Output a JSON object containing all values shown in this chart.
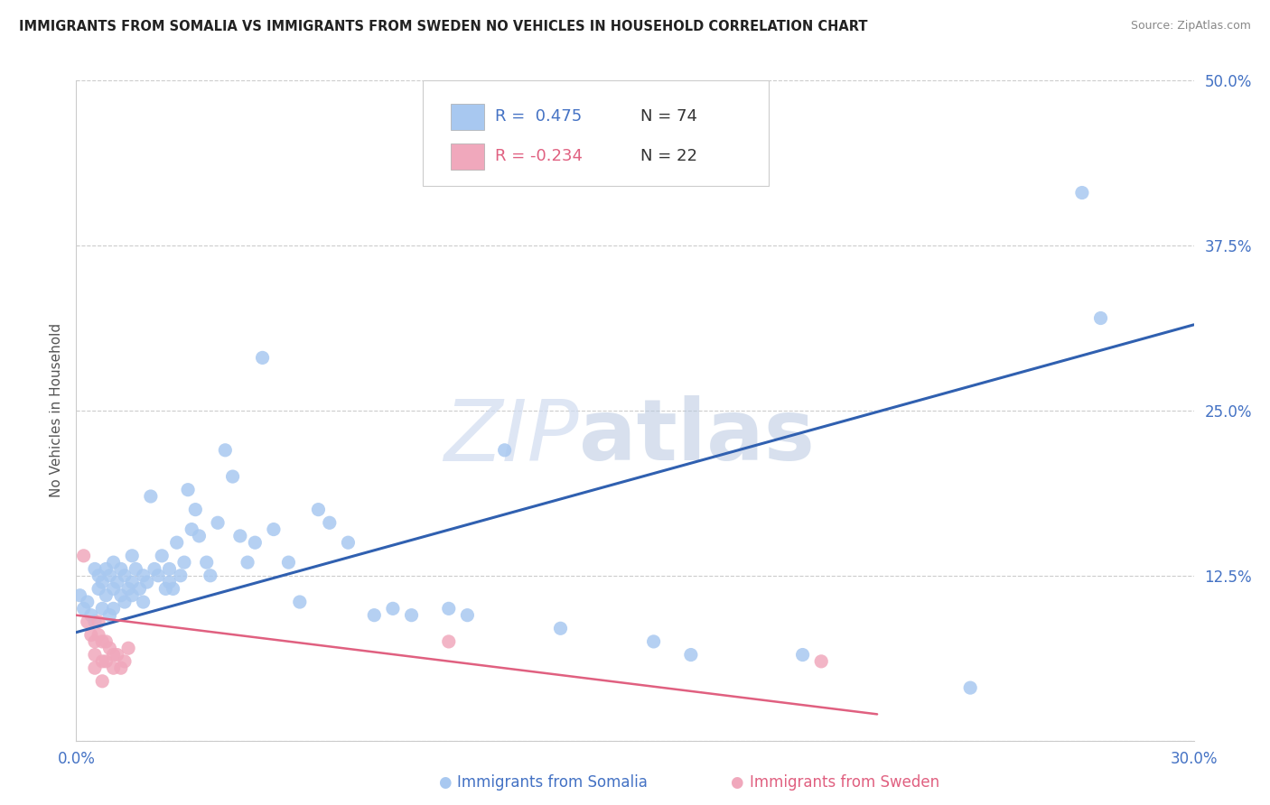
{
  "title": "IMMIGRANTS FROM SOMALIA VS IMMIGRANTS FROM SWEDEN NO VEHICLES IN HOUSEHOLD CORRELATION CHART",
  "source": "Source: ZipAtlas.com",
  "ylabel": "No Vehicles in Household",
  "xlabel_somalia": "Immigrants from Somalia",
  "xlabel_sweden": "Immigrants from Sweden",
  "legend_r_somalia": "R =  0.475",
  "legend_n_somalia": "N = 74",
  "legend_r_sweden": "R = -0.234",
  "legend_n_sweden": "N = 22",
  "xmin": 0.0,
  "xmax": 0.3,
  "ymin": 0.0,
  "ymax": 0.5,
  "yticks": [
    0.0,
    0.125,
    0.25,
    0.375,
    0.5
  ],
  "ytick_labels": [
    "",
    "12.5%",
    "25.0%",
    "37.5%",
    "50.0%"
  ],
  "xticks": [
    0.0,
    0.3
  ],
  "xtick_labels": [
    "0.0%",
    "30.0%"
  ],
  "color_somalia": "#A8C8F0",
  "color_sweden": "#F0A8BC",
  "line_color_somalia": "#3060B0",
  "line_color_sweden": "#E06080",
  "watermark_zip": "ZIP",
  "watermark_atlas": "atlas",
  "somalia_points": [
    [
      0.001,
      0.11
    ],
    [
      0.002,
      0.1
    ],
    [
      0.003,
      0.105
    ],
    [
      0.004,
      0.095
    ],
    [
      0.005,
      0.13
    ],
    [
      0.005,
      0.09
    ],
    [
      0.006,
      0.125
    ],
    [
      0.006,
      0.115
    ],
    [
      0.007,
      0.12
    ],
    [
      0.007,
      0.1
    ],
    [
      0.008,
      0.13
    ],
    [
      0.008,
      0.11
    ],
    [
      0.009,
      0.125
    ],
    [
      0.009,
      0.095
    ],
    [
      0.01,
      0.135
    ],
    [
      0.01,
      0.115
    ],
    [
      0.01,
      0.1
    ],
    [
      0.011,
      0.12
    ],
    [
      0.012,
      0.13
    ],
    [
      0.012,
      0.11
    ],
    [
      0.013,
      0.125
    ],
    [
      0.013,
      0.105
    ],
    [
      0.014,
      0.115
    ],
    [
      0.015,
      0.14
    ],
    [
      0.015,
      0.12
    ],
    [
      0.015,
      0.11
    ],
    [
      0.016,
      0.13
    ],
    [
      0.017,
      0.115
    ],
    [
      0.018,
      0.125
    ],
    [
      0.018,
      0.105
    ],
    [
      0.019,
      0.12
    ],
    [
      0.02,
      0.185
    ],
    [
      0.021,
      0.13
    ],
    [
      0.022,
      0.125
    ],
    [
      0.023,
      0.14
    ],
    [
      0.024,
      0.115
    ],
    [
      0.025,
      0.13
    ],
    [
      0.025,
      0.12
    ],
    [
      0.026,
      0.115
    ],
    [
      0.027,
      0.15
    ],
    [
      0.028,
      0.125
    ],
    [
      0.029,
      0.135
    ],
    [
      0.03,
      0.19
    ],
    [
      0.031,
      0.16
    ],
    [
      0.032,
      0.175
    ],
    [
      0.033,
      0.155
    ],
    [
      0.035,
      0.135
    ],
    [
      0.036,
      0.125
    ],
    [
      0.038,
      0.165
    ],
    [
      0.04,
      0.22
    ],
    [
      0.042,
      0.2
    ],
    [
      0.044,
      0.155
    ],
    [
      0.046,
      0.135
    ],
    [
      0.048,
      0.15
    ],
    [
      0.05,
      0.29
    ],
    [
      0.053,
      0.16
    ],
    [
      0.057,
      0.135
    ],
    [
      0.06,
      0.105
    ],
    [
      0.065,
      0.175
    ],
    [
      0.068,
      0.165
    ],
    [
      0.073,
      0.15
    ],
    [
      0.08,
      0.095
    ],
    [
      0.085,
      0.1
    ],
    [
      0.09,
      0.095
    ],
    [
      0.1,
      0.1
    ],
    [
      0.105,
      0.095
    ],
    [
      0.115,
      0.22
    ],
    [
      0.13,
      0.085
    ],
    [
      0.155,
      0.075
    ],
    [
      0.165,
      0.065
    ],
    [
      0.195,
      0.065
    ],
    [
      0.24,
      0.04
    ],
    [
      0.27,
      0.415
    ],
    [
      0.275,
      0.32
    ]
  ],
  "sweden_points": [
    [
      0.002,
      0.14
    ],
    [
      0.003,
      0.09
    ],
    [
      0.004,
      0.08
    ],
    [
      0.005,
      0.075
    ],
    [
      0.005,
      0.065
    ],
    [
      0.005,
      0.055
    ],
    [
      0.006,
      0.09
    ],
    [
      0.006,
      0.08
    ],
    [
      0.007,
      0.075
    ],
    [
      0.007,
      0.06
    ],
    [
      0.007,
      0.045
    ],
    [
      0.008,
      0.075
    ],
    [
      0.008,
      0.06
    ],
    [
      0.009,
      0.07
    ],
    [
      0.01,
      0.065
    ],
    [
      0.01,
      0.055
    ],
    [
      0.011,
      0.065
    ],
    [
      0.012,
      0.055
    ],
    [
      0.013,
      0.06
    ],
    [
      0.014,
      0.07
    ],
    [
      0.1,
      0.075
    ],
    [
      0.2,
      0.06
    ]
  ],
  "somalia_line_x": [
    0.0,
    0.3
  ],
  "somalia_line_y": [
    0.082,
    0.315
  ],
  "sweden_line_x": [
    0.0,
    0.215
  ],
  "sweden_line_y": [
    0.095,
    0.02
  ]
}
